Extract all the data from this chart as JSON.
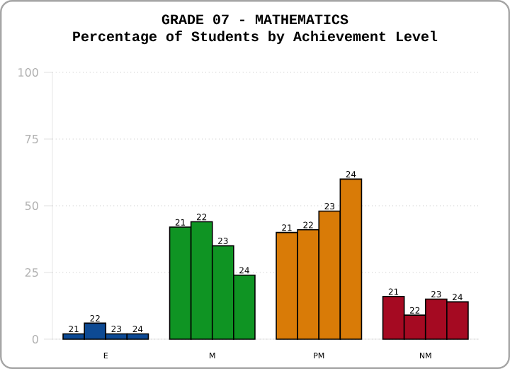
{
  "chart_data": {
    "type": "bar",
    "title": "GRADE 07 - MATHEMATICS",
    "subtitle": "Percentage of Students by Achievement Level",
    "categories": [
      "E",
      "M",
      "PM",
      "NM"
    ],
    "series": [
      {
        "name": "21",
        "colors": [
          "#0d4a94",
          "#0f9423",
          "#d97b07",
          "#a50a22"
        ],
        "values": [
          2,
          42,
          40,
          16
        ]
      },
      {
        "name": "22",
        "colors": [
          "#0d4a94",
          "#0f9423",
          "#d97b07",
          "#a50a22"
        ],
        "values": [
          6,
          44,
          41,
          9
        ]
      },
      {
        "name": "23",
        "colors": [
          "#0d4a94",
          "#0f9423",
          "#d97b07",
          "#a50a22"
        ],
        "values": [
          2,
          35,
          48,
          15
        ]
      },
      {
        "name": "24",
        "colors": [
          "#0d4a94",
          "#0f9423",
          "#d97b07",
          "#a50a22"
        ],
        "values": [
          2,
          24,
          60,
          14
        ]
      }
    ],
    "ylim": [
      0,
      100
    ],
    "yticks": [
      0,
      25,
      50,
      75,
      100
    ],
    "grid": "y"
  }
}
